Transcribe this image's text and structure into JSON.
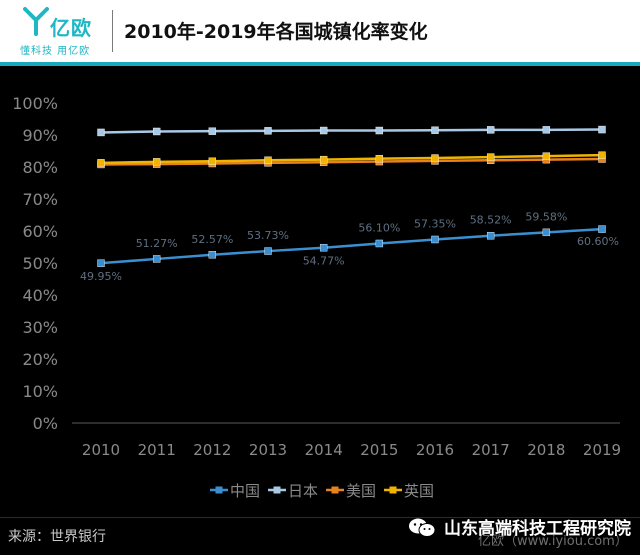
{
  "header": {
    "logo_text": "亿欧",
    "slogan": "懂科技 用亿欧",
    "title": "2010年-2019年各国城镇化率变化"
  },
  "colors": {
    "accent": "#17a9b9",
    "china": "#3b8fd0",
    "japan": "#a9c8e6",
    "usa": "#e8821e",
    "uk": "#f0b400"
  },
  "chart_data": {
    "type": "line",
    "categories": [
      "2010",
      "2011",
      "2012",
      "2013",
      "2014",
      "2015",
      "2016",
      "2017",
      "2018",
      "2019"
    ],
    "y_ticks": [
      "0%",
      "10%",
      "20%",
      "30%",
      "40%",
      "50%",
      "60%",
      "70%",
      "80%",
      "90%",
      "100%"
    ],
    "ylim": [
      0,
      100
    ],
    "grid": false,
    "legend": "bottom",
    "series": [
      {
        "name": "中国",
        "color": "#3b8fd0",
        "values": [
          49.95,
          51.27,
          52.57,
          53.73,
          54.77,
          56.1,
          57.35,
          58.52,
          59.58,
          60.6
        ],
        "labels": [
          "49.95%",
          "51.27%",
          "52.57%",
          "53.73%",
          "54.77%",
          "56.10%",
          "57.35%",
          "58.52%",
          "59.58%",
          "60.60%"
        ]
      },
      {
        "name": "日本",
        "color": "#a9c8e6",
        "values": [
          90.8,
          91.1,
          91.2,
          91.3,
          91.4,
          91.4,
          91.5,
          91.6,
          91.6,
          91.7
        ]
      },
      {
        "name": "美国",
        "color": "#e8821e",
        "values": [
          80.8,
          80.9,
          81.1,
          81.3,
          81.5,
          81.7,
          81.9,
          82.1,
          82.3,
          82.5
        ]
      },
      {
        "name": "英国",
        "color": "#f0b400",
        "values": [
          81.3,
          81.6,
          81.8,
          82.1,
          82.3,
          82.6,
          82.8,
          83.1,
          83.4,
          83.7
        ]
      }
    ]
  },
  "footer": {
    "source": "来源：世界银行",
    "account": "山东高端科技工程研究院",
    "watermark": "亿欧（www.iyiou.com）"
  }
}
